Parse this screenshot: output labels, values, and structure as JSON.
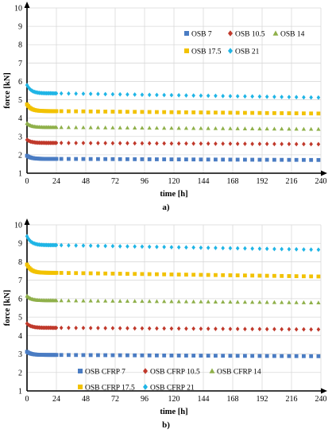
{
  "chart_data": [
    {
      "type": "scatter",
      "panel_label": "a)",
      "xlabel": "time [h]",
      "ylabel": "force [kN]",
      "xlim": [
        0,
        240
      ],
      "ylim": [
        1,
        10
      ],
      "xticks": [
        0,
        24,
        48,
        72,
        96,
        120,
        144,
        168,
        192,
        216,
        240
      ],
      "yticks": [
        1,
        2,
        3,
        4,
        5,
        6,
        7,
        8,
        9,
        10
      ],
      "grid": true,
      "legend_position": "inside-top-right",
      "series": [
        {
          "name": "OSB 7",
          "marker": "square",
          "color": "#4a7cc3",
          "initial": 1.95,
          "level": 1.78,
          "final": 1.72
        },
        {
          "name": "OSB 10.5",
          "marker": "diamond",
          "color": "#c0392b",
          "initial": 2.82,
          "level": 2.65,
          "final": 2.58
        },
        {
          "name": "OSB 14",
          "marker": "triangle",
          "color": "#8fb04a",
          "initial": 3.72,
          "level": 3.5,
          "final": 3.4
        },
        {
          "name": "OSB 17.5",
          "marker": "square",
          "color": "#f2c200",
          "initial": 4.75,
          "level": 4.38,
          "final": 4.25
        },
        {
          "name": "OSB 21",
          "marker": "diamond",
          "color": "#1fb5e6",
          "initial": 5.8,
          "level": 5.35,
          "final": 5.12
        }
      ]
    },
    {
      "type": "scatter",
      "panel_label": "b)",
      "xlabel": "time [h]",
      "ylabel": "force [kN]",
      "xlim": [
        0,
        240
      ],
      "ylim": [
        1,
        10
      ],
      "xticks": [
        0,
        24,
        48,
        72,
        96,
        120,
        144,
        168,
        192,
        216,
        240
      ],
      "yticks": [
        1,
        2,
        3,
        4,
        5,
        6,
        7,
        8,
        9,
        10
      ],
      "grid": true,
      "legend_position": "bottom",
      "series": [
        {
          "name": "OSB CFRP 7",
          "marker": "square",
          "color": "#4a7cc3",
          "initial": 3.12,
          "level": 2.95,
          "final": 2.88
        },
        {
          "name": "OSB CFRP 10.5",
          "marker": "diamond",
          "color": "#c0392b",
          "initial": 4.65,
          "level": 4.42,
          "final": 4.33
        },
        {
          "name": "OSB CFRP 14",
          "marker": "triangle",
          "color": "#8fb04a",
          "initial": 6.15,
          "level": 5.9,
          "final": 5.78
        },
        {
          "name": "OSB CFRP 17.5",
          "marker": "square",
          "color": "#f2c200",
          "initial": 7.85,
          "level": 7.4,
          "final": 7.2
        },
        {
          "name": "OSB CFRP 21",
          "marker": "diamond",
          "color": "#1fb5e6",
          "initial": 9.38,
          "level": 8.9,
          "final": 8.65
        }
      ]
    }
  ]
}
